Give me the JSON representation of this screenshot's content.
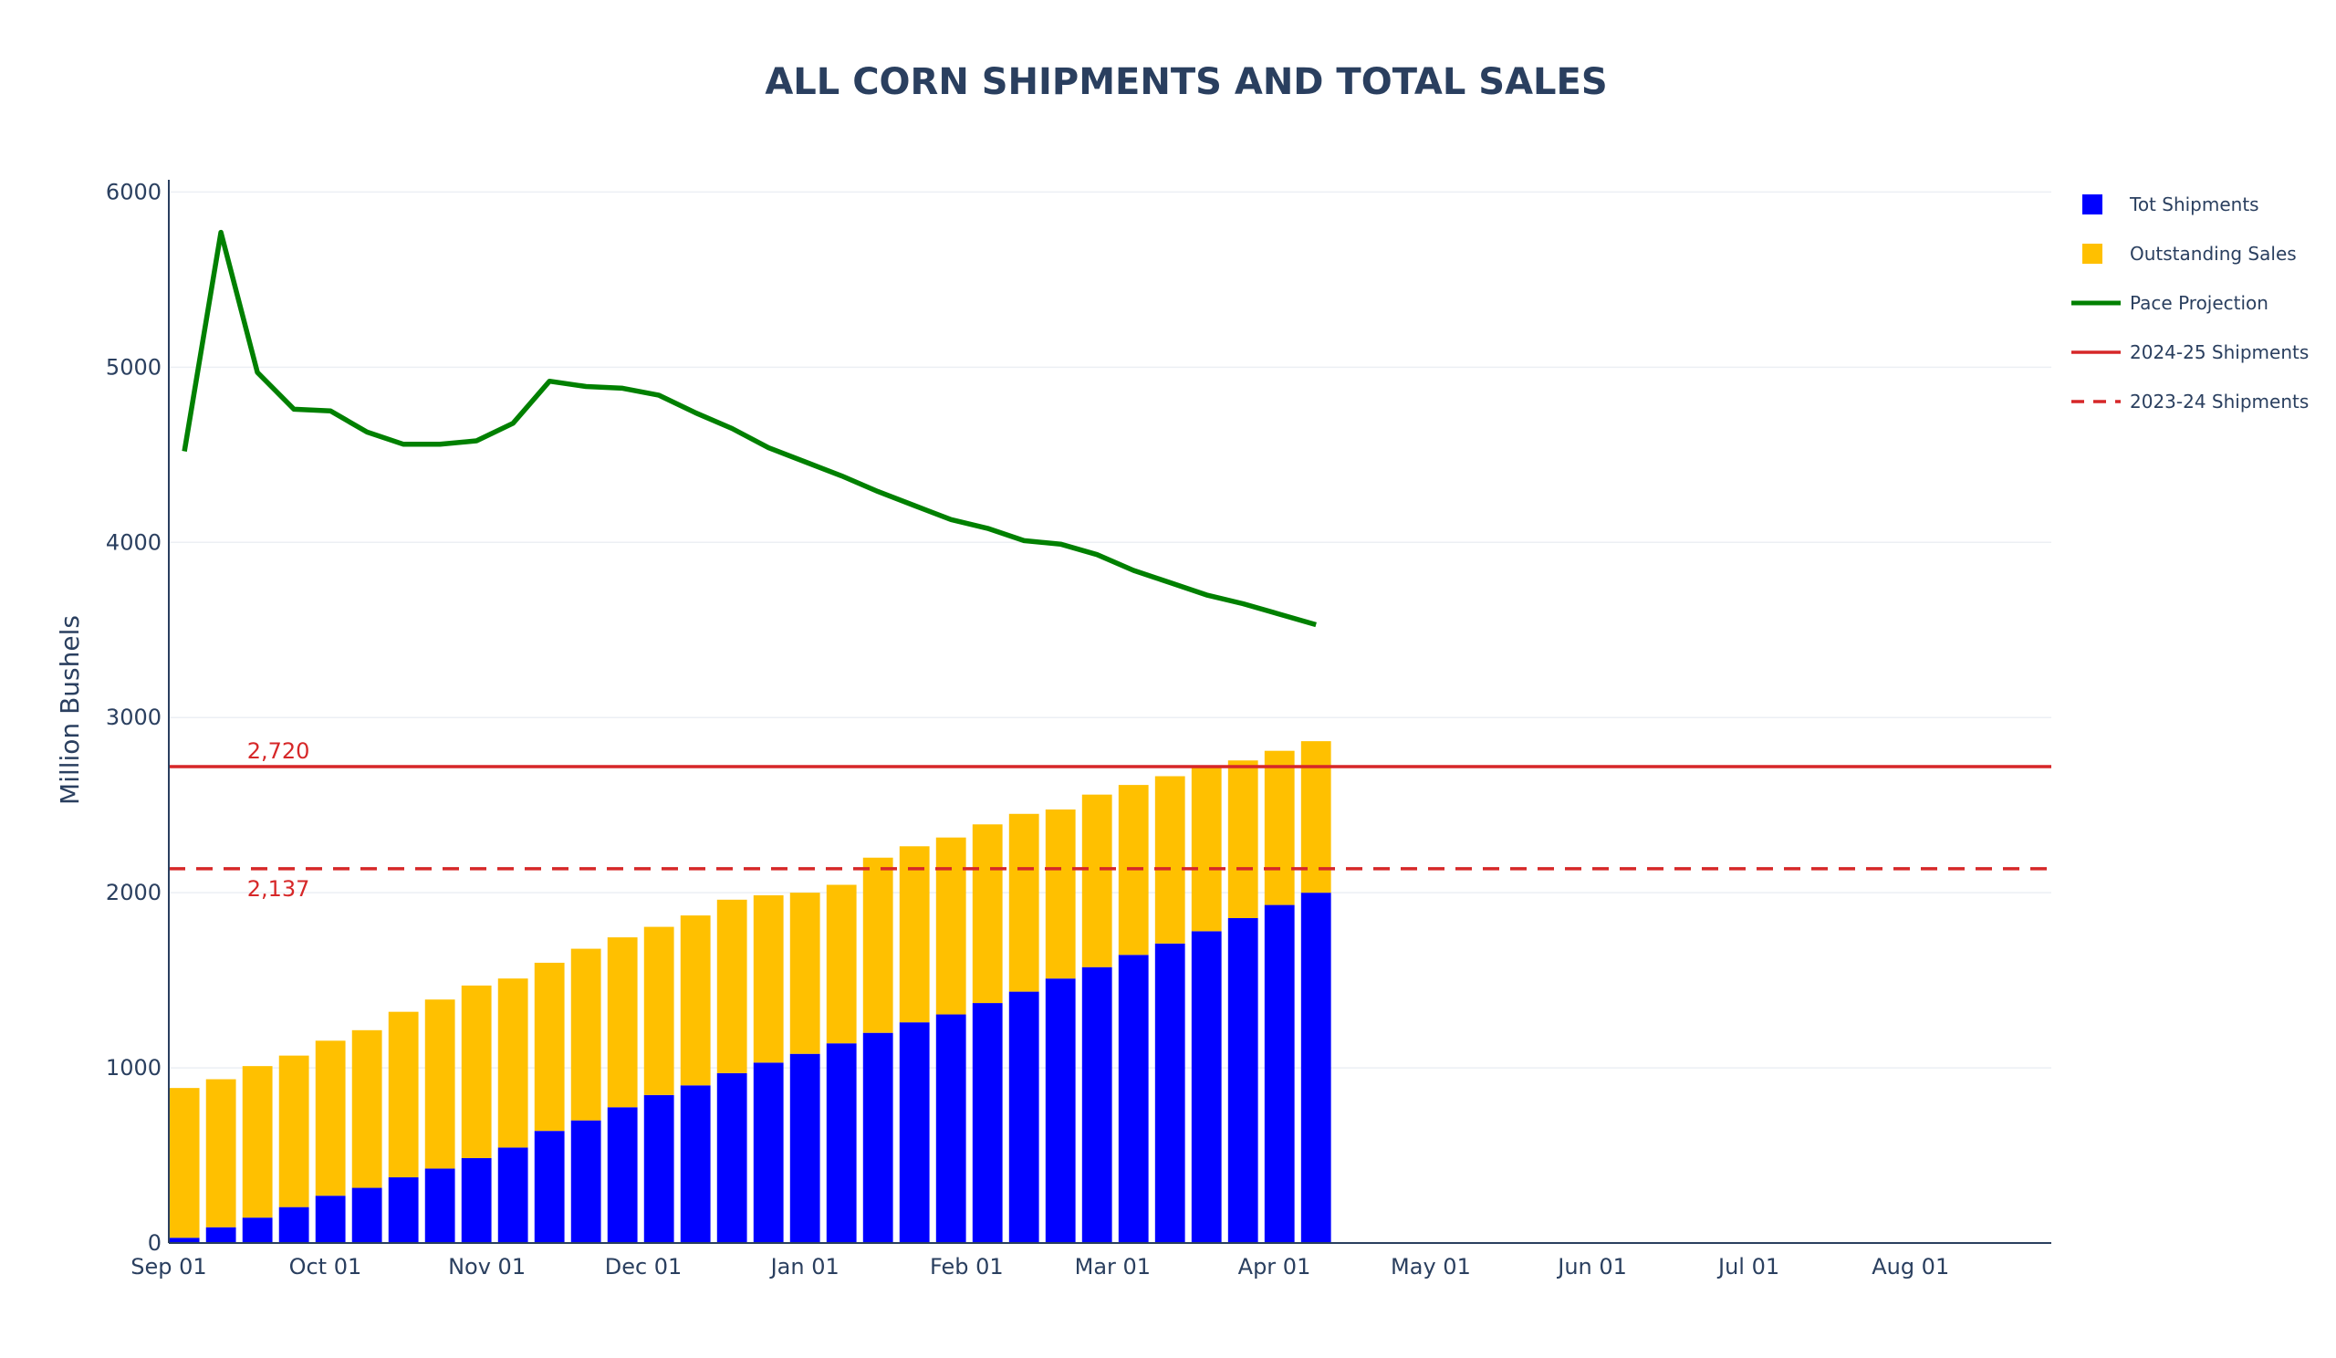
{
  "chart_data": {
    "type": "bar",
    "title": "ALL CORN SHIPMENTS AND TOTAL SALES",
    "ylabel": "Million Bushels",
    "xlabel": "",
    "ylim": [
      0,
      6070
    ],
    "yticks": [
      0,
      1000,
      2000,
      3000,
      4000,
      5000,
      6000
    ],
    "x_ticks": [
      {
        "label": "Sep 01",
        "day": 0
      },
      {
        "label": "Oct 01",
        "day": 30
      },
      {
        "label": "Nov 01",
        "day": 61
      },
      {
        "label": "Dec 01",
        "day": 91
      },
      {
        "label": "Jan 01",
        "day": 122
      },
      {
        "label": "Feb 01",
        "day": 153
      },
      {
        "label": "Mar 01",
        "day": 181
      },
      {
        "label": "Apr 01",
        "day": 212
      },
      {
        "label": "May 01",
        "day": 242
      },
      {
        "label": "Jun 01",
        "day": 273
      },
      {
        "label": "Jul 01",
        "day": 303
      },
      {
        "label": "Aug 01",
        "day": 334
      }
    ],
    "x_range_days": [
      0,
      361
    ],
    "weeks_start_day": 3,
    "week_interval_days": 7,
    "stacked": true,
    "series": [
      {
        "name": "Tot Shipments",
        "color": "#0000ff",
        "values": [
          30,
          90,
          145,
          205,
          270,
          315,
          375,
          425,
          485,
          545,
          640,
          700,
          775,
          845,
          900,
          970,
          1030,
          1080,
          1140,
          1200,
          1260,
          1305,
          1370,
          1435,
          1510,
          1575,
          1645,
          1710,
          1780,
          1855,
          1930,
          2000
        ]
      },
      {
        "name": "Outstanding Sales",
        "color": "#ffc000",
        "values": [
          855,
          845,
          865,
          865,
          885,
          900,
          945,
          965,
          985,
          965,
          960,
          980,
          970,
          960,
          970,
          990,
          955,
          920,
          905,
          1000,
          1005,
          1010,
          1020,
          1015,
          965,
          985,
          970,
          955,
          945,
          900,
          880,
          865
        ]
      }
    ],
    "line_series": [
      {
        "name": "Pace Projection",
        "color": "#008000",
        "values": [
          4520,
          5770,
          4970,
          4760,
          4750,
          4630,
          4560,
          4560,
          4580,
          4680,
          4920,
          4890,
          4880,
          4840,
          4740,
          4650,
          4540,
          4460,
          4380,
          4290,
          4210,
          4130,
          4080,
          4010,
          3990,
          3930,
          3840,
          3770,
          3700,
          3650,
          3590,
          3530
        ]
      }
    ],
    "reference_lines": [
      {
        "name": "2024-25 Shipments",
        "value": 2720,
        "label": "2,720",
        "color": "#d62728",
        "dash": "solid"
      },
      {
        "name": "2023-24 Shipments",
        "value": 2137,
        "label": "2,137",
        "color": "#d62728",
        "dash": "dashed"
      }
    ],
    "legend": {
      "position": "top-right",
      "items": [
        {
          "label": "Tot Shipments",
          "kind": "square",
          "color": "#0000ff"
        },
        {
          "label": "Outstanding Sales",
          "kind": "square",
          "color": "#ffc000"
        },
        {
          "label": "Pace Projection",
          "kind": "line",
          "color": "#008000"
        },
        {
          "label": "2024-25 Shipments",
          "kind": "line",
          "color": "#d62728"
        },
        {
          "label": "2023-24 Shipments",
          "kind": "dash",
          "color": "#d62728"
        }
      ]
    },
    "grid": true
  }
}
